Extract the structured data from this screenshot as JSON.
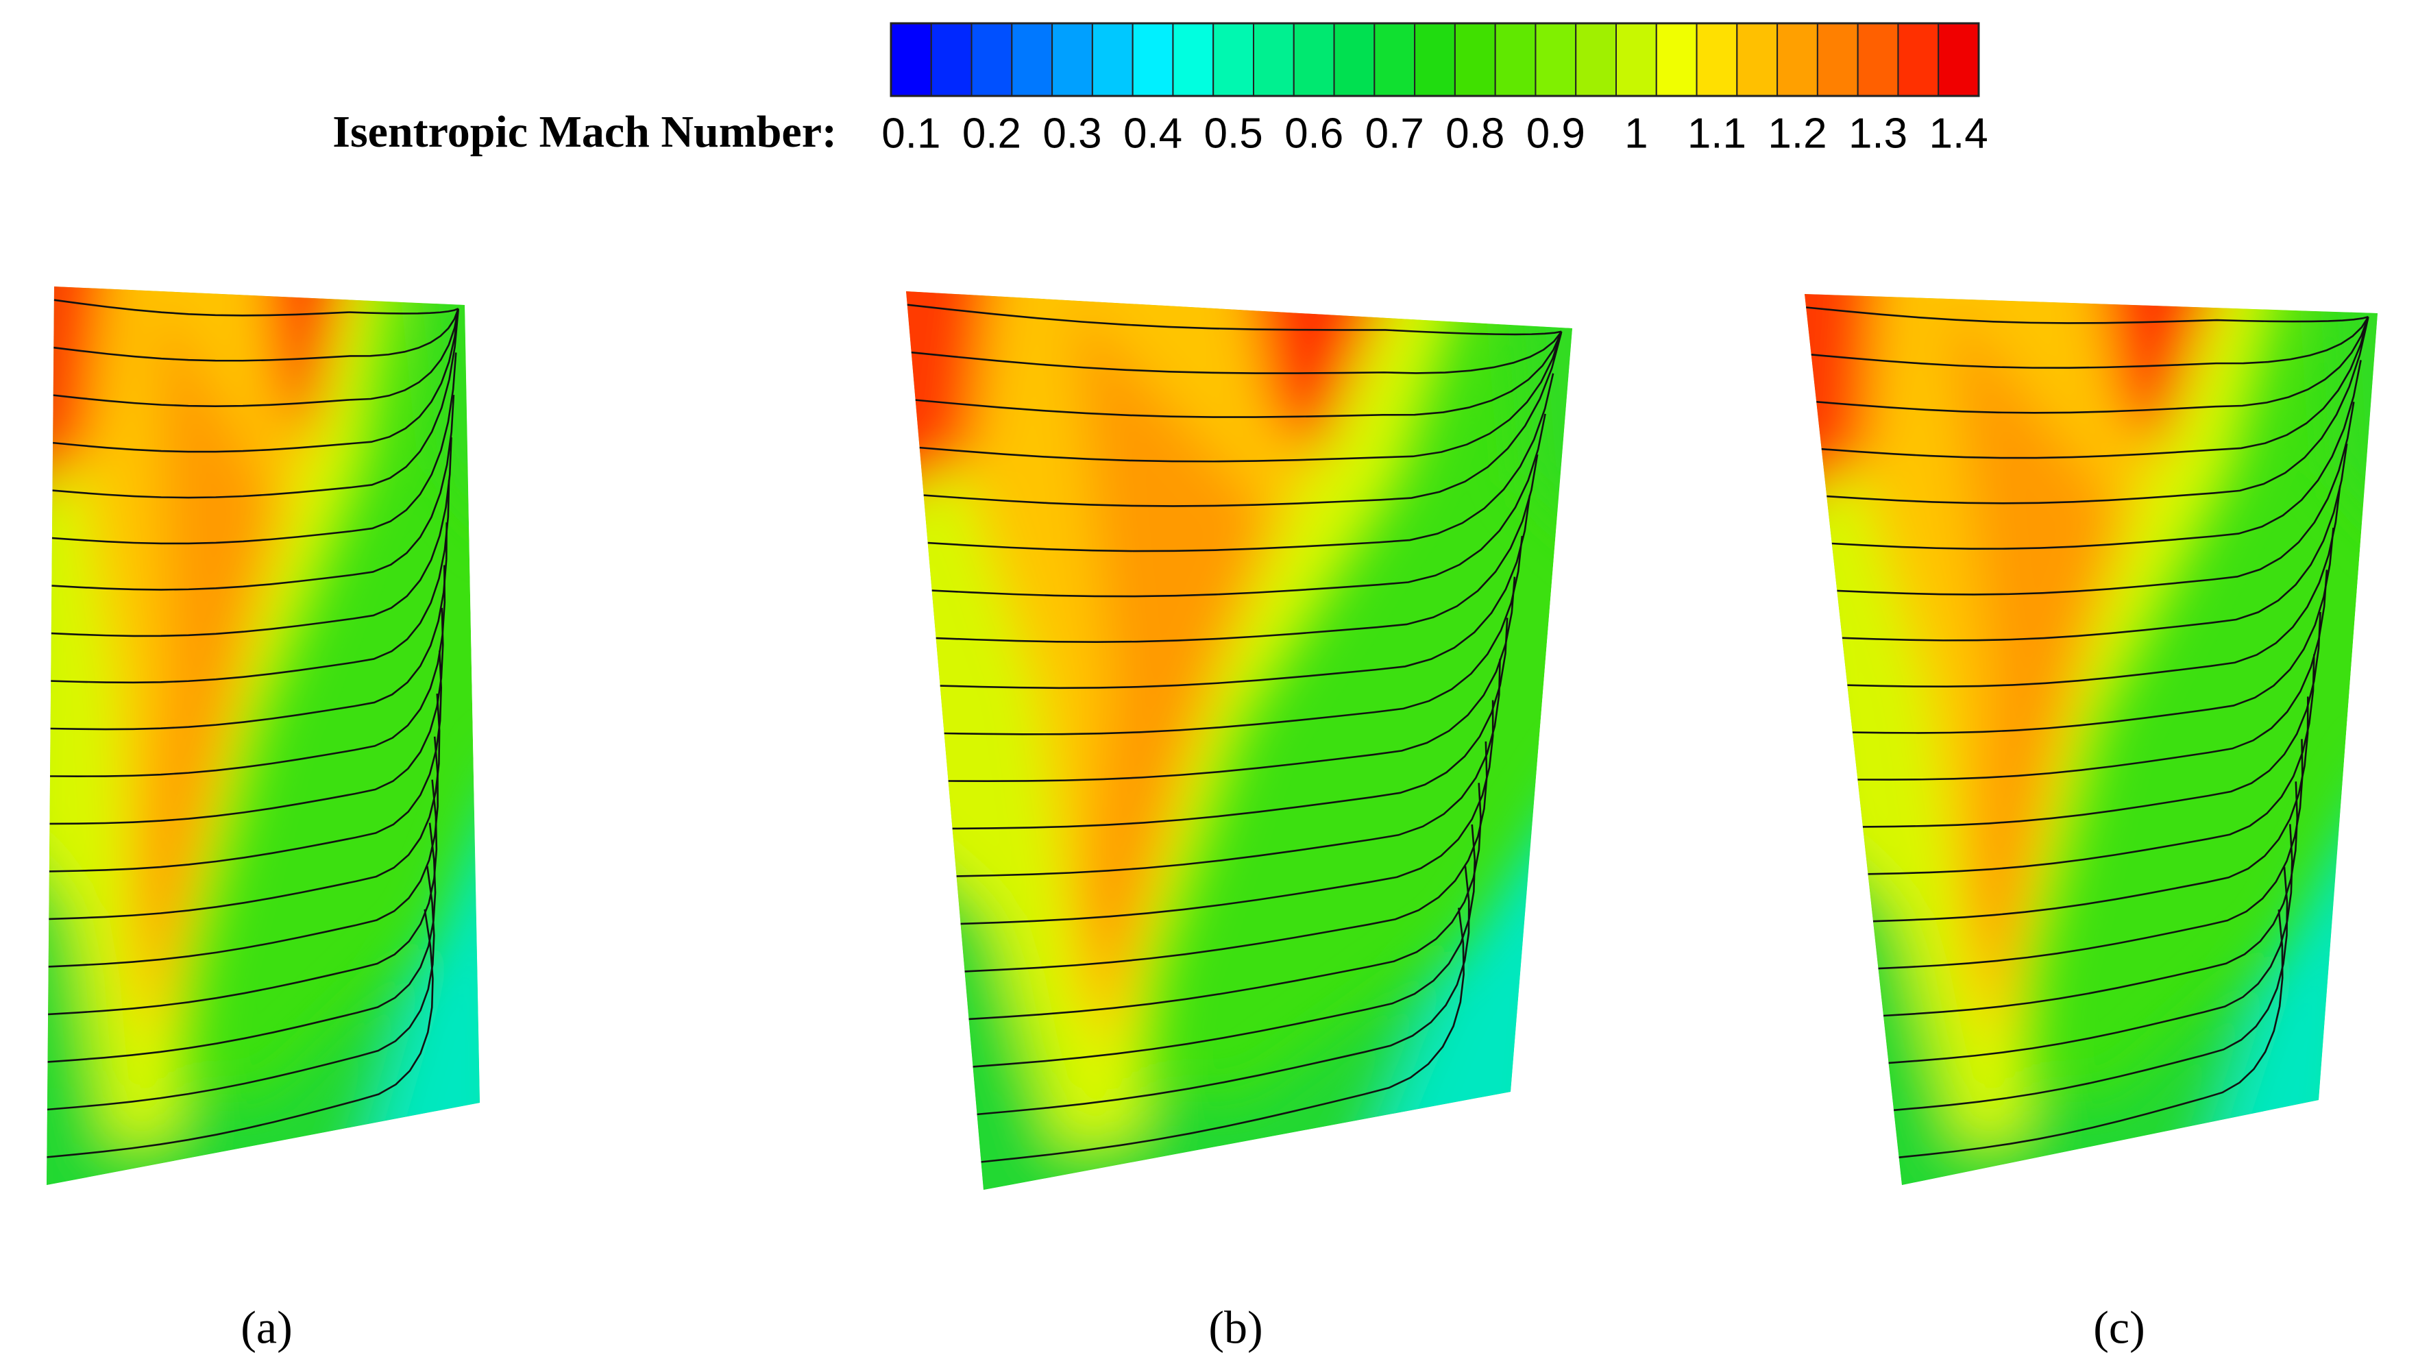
{
  "chart_data": {
    "type": "colorbar",
    "title": "Isentropic Mach Number:",
    "xlim": [
      0.075,
      1.425
    ],
    "xticks": [
      0.1,
      0.2,
      0.3,
      0.4,
      0.5,
      0.6,
      0.7,
      0.8,
      0.9,
      1,
      1.1,
      1.2,
      1.3,
      1.4
    ],
    "colors": [
      "#0000ff",
      "#0028ff",
      "#0050ff",
      "#0078ff",
      "#00a0ff",
      "#00c8ff",
      "#00f0ff",
      "#00ffe0",
      "#00f8b0",
      "#00f090",
      "#00e870",
      "#00e050",
      "#10e030",
      "#20dc10",
      "#40e000",
      "#60e800",
      "#80f000",
      "#a0f000",
      "#c8f800",
      "#f0ff00",
      "#ffe000",
      "#ffc000",
      "#ffa000",
      "#ff8000",
      "#ff6000",
      "#ff3000",
      "#f00000"
    ]
  },
  "panels": [
    {
      "label": "(a)"
    },
    {
      "label": "(b)"
    },
    {
      "label": "(c)"
    }
  ]
}
